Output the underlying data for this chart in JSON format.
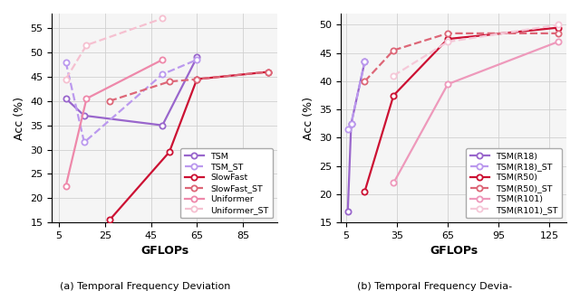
{
  "left": {
    "xlabel": "GFLOPs",
    "ylabel": "Acc (%)",
    "xlim": [
      2,
      100
    ],
    "ylim": [
      15,
      58
    ],
    "xticks": [
      5,
      25,
      45,
      65,
      85
    ],
    "yticks": [
      15,
      20,
      25,
      30,
      35,
      40,
      45,
      50,
      55
    ],
    "series": [
      {
        "label": "TSM",
        "x": [
          8,
          16,
          50,
          65
        ],
        "y": [
          40.5,
          37.0,
          35.0,
          49.0
        ],
        "color": "#9966cc",
        "linestyle": "-",
        "alpha": 1.0
      },
      {
        "label": "TSM_ST",
        "x": [
          8,
          16,
          50,
          65
        ],
        "y": [
          48.0,
          31.5,
          45.5,
          48.5
        ],
        "color": "#bb99ee",
        "linestyle": "--",
        "alpha": 1.0
      },
      {
        "label": "SlowFast",
        "x": [
          27,
          53,
          65,
          96
        ],
        "y": [
          15.5,
          29.5,
          44.5,
          46.0
        ],
        "color": "#cc1133",
        "linestyle": "-",
        "alpha": 1.0
      },
      {
        "label": "SlowFast_ST",
        "x": [
          27,
          53,
          65,
          96
        ],
        "y": [
          40.0,
          44.0,
          44.5,
          46.0
        ],
        "color": "#dd6677",
        "linestyle": "--",
        "alpha": 1.0
      },
      {
        "label": "Uniformer",
        "x": [
          8,
          17,
          50
        ],
        "y": [
          22.5,
          40.5,
          48.5
        ],
        "color": "#ee88aa",
        "linestyle": "-",
        "alpha": 1.0
      },
      {
        "label": "Uniformer_ST",
        "x": [
          8,
          17,
          50
        ],
        "y": [
          44.5,
          51.5,
          57.0
        ],
        "color": "#f5c0d0",
        "linestyle": "--",
        "alpha": 1.0
      }
    ]
  },
  "right": {
    "xlabel": "GFLOPs",
    "ylabel": "Acc (%)",
    "xlim": [
      2,
      135
    ],
    "ylim": [
      15,
      52
    ],
    "xticks": [
      5,
      35,
      65,
      95,
      125
    ],
    "yticks": [
      15,
      20,
      25,
      30,
      35,
      40,
      45,
      50
    ],
    "series": [
      {
        "label": "TSM(R18)",
        "x": [
          6,
          8,
          16
        ],
        "y": [
          17.0,
          32.5,
          43.5
        ],
        "color": "#9966cc",
        "linestyle": "-",
        "alpha": 1.0
      },
      {
        "label": "TSM(R18)_ST",
        "x": [
          6,
          8,
          16
        ],
        "y": [
          31.5,
          32.5,
          43.5
        ],
        "color": "#bb99ee",
        "linestyle": "--",
        "alpha": 1.0
      },
      {
        "label": "TSM(R50)",
        "x": [
          16,
          33,
          65,
          130
        ],
        "y": [
          20.5,
          37.5,
          47.5,
          49.5
        ],
        "color": "#cc1133",
        "linestyle": "-",
        "alpha": 1.0
      },
      {
        "label": "TSM(R50)_ST",
        "x": [
          16,
          33,
          65,
          130
        ],
        "y": [
          40.0,
          45.5,
          48.5,
          48.5
        ],
        "color": "#dd6677",
        "linestyle": "--",
        "alpha": 1.0
      },
      {
        "label": "TSM(R101)",
        "x": [
          33,
          65,
          130
        ],
        "y": [
          22.0,
          39.5,
          47.0
        ],
        "color": "#ee99bb",
        "linestyle": "-",
        "alpha": 1.0
      },
      {
        "label": "TSM(R101)_ST",
        "x": [
          33,
          65,
          130
        ],
        "y": [
          41.0,
          47.0,
          50.0
        ],
        "color": "#f5c8d8",
        "linestyle": "--",
        "alpha": 1.0
      }
    ]
  },
  "caption_left": "(a) Temporal Frequency Deviation",
  "caption_right": "(b) Temporal Frequency Devia-",
  "marker": "o",
  "markersize": 4.5,
  "linewidth": 1.6,
  "grid_color": "#d0d0d0",
  "bg_color": "#f5f5f5"
}
